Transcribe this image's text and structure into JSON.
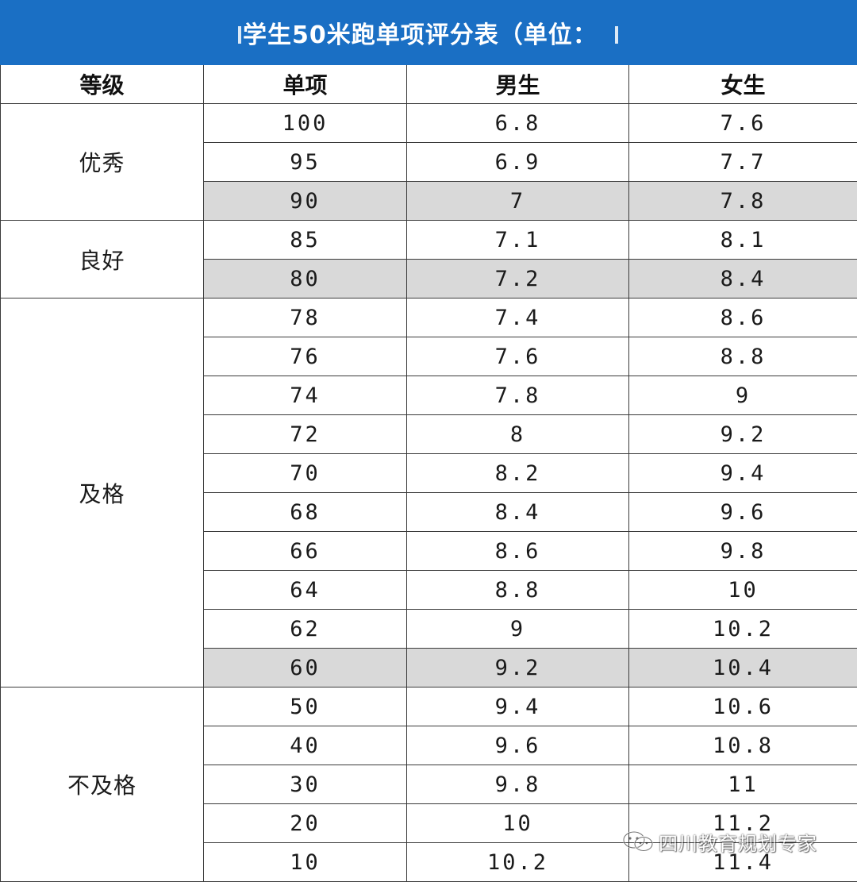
{
  "title": "学生50米跑单项评分表（单位：",
  "colors": {
    "title_bar": "#1a6fc4",
    "shaded_row": "#d9d9d9",
    "border": "#3a3a3a"
  },
  "headers": {
    "level": "等级",
    "score": "单项",
    "boy": "男生",
    "girl": "女生"
  },
  "groups": [
    {
      "level": "优秀",
      "rows": [
        {
          "score": "100",
          "boy": "6.8",
          "girl": "7.6",
          "shaded": false
        },
        {
          "score": "95",
          "boy": "6.9",
          "girl": "7.7",
          "shaded": false
        },
        {
          "score": "90",
          "boy": "7",
          "girl": "7.8",
          "shaded": true
        }
      ]
    },
    {
      "level": "良好",
      "rows": [
        {
          "score": "85",
          "boy": "7.1",
          "girl": "8.1",
          "shaded": false
        },
        {
          "score": "80",
          "boy": "7.2",
          "girl": "8.4",
          "shaded": true
        }
      ]
    },
    {
      "level": "及格",
      "rows": [
        {
          "score": "78",
          "boy": "7.4",
          "girl": "8.6",
          "shaded": false
        },
        {
          "score": "76",
          "boy": "7.6",
          "girl": "8.8",
          "shaded": false
        },
        {
          "score": "74",
          "boy": "7.8",
          "girl": "9",
          "shaded": false
        },
        {
          "score": "72",
          "boy": "8",
          "girl": "9.2",
          "shaded": false
        },
        {
          "score": "70",
          "boy": "8.2",
          "girl": "9.4",
          "shaded": false
        },
        {
          "score": "68",
          "boy": "8.4",
          "girl": "9.6",
          "shaded": false
        },
        {
          "score": "66",
          "boy": "8.6",
          "girl": "9.8",
          "shaded": false
        },
        {
          "score": "64",
          "boy": "8.8",
          "girl": "10",
          "shaded": false
        },
        {
          "score": "62",
          "boy": "9",
          "girl": "10.2",
          "shaded": false
        },
        {
          "score": "60",
          "boy": "9.2",
          "girl": "10.4",
          "shaded": true
        }
      ]
    },
    {
      "level": "不及格",
      "rows": [
        {
          "score": "50",
          "boy": "9.4",
          "girl": "10.6",
          "shaded": false
        },
        {
          "score": "40",
          "boy": "9.6",
          "girl": "10.8",
          "shaded": false
        },
        {
          "score": "30",
          "boy": "9.8",
          "girl": "11",
          "shaded": false
        },
        {
          "score": "20",
          "boy": "10",
          "girl": "11.2",
          "shaded": false
        },
        {
          "score": "10",
          "boy": "10.2",
          "girl": "11.4",
          "shaded": false
        }
      ]
    }
  ],
  "watermark": {
    "icon": "wechat-icon",
    "text": "四川教育规划专家"
  }
}
